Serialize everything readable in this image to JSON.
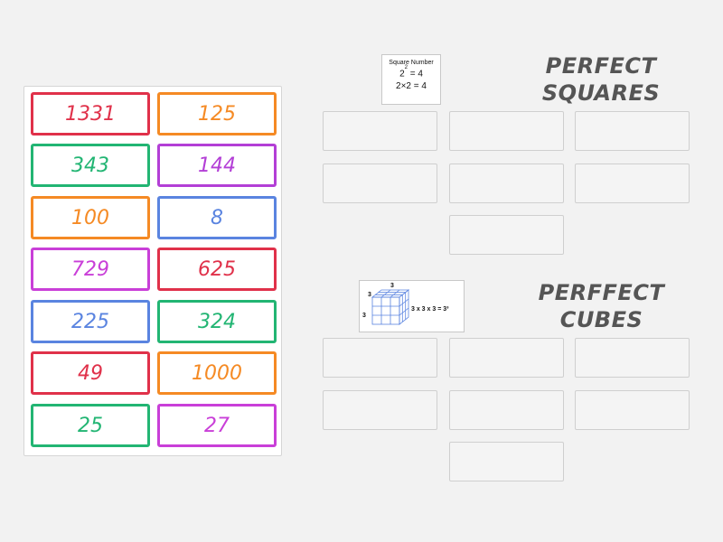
{
  "cards": [
    {
      "value": "1331",
      "color": "#e0314a"
    },
    {
      "value": "125",
      "color": "#f58a24"
    },
    {
      "value": "343",
      "color": "#22b573"
    },
    {
      "value": "144",
      "color": "#b33fd6"
    },
    {
      "value": "100",
      "color": "#f58a24"
    },
    {
      "value": "8",
      "color": "#5a84e0"
    },
    {
      "value": "729",
      "color": "#c93fd8"
    },
    {
      "value": "625",
      "color": "#e0314a"
    },
    {
      "value": "225",
      "color": "#5a84e0"
    },
    {
      "value": "324",
      "color": "#22b573"
    },
    {
      "value": "49",
      "color": "#e0314a"
    },
    {
      "value": "1000",
      "color": "#f58a24"
    },
    {
      "value": "25",
      "color": "#22b573"
    },
    {
      "value": "27",
      "color": "#c93fd8"
    }
  ],
  "squares": {
    "heading_line1": "PERFECT",
    "heading_line2": "SQUARES",
    "image": {
      "caption": "Square Number",
      "base": "2",
      "exponent": "2",
      "equals_result": "= 4",
      "product": "2×2 = 4"
    }
  },
  "cubes": {
    "heading_line1": "PERFFECT",
    "heading_line2": "CUBES",
    "image": {
      "dim_label": "3",
      "equation": "3 x 3 x 3 = 3³"
    }
  },
  "colors": {
    "heading": "#555555",
    "slot_border": "#cfcfcf",
    "background": "#f2f2f2"
  }
}
